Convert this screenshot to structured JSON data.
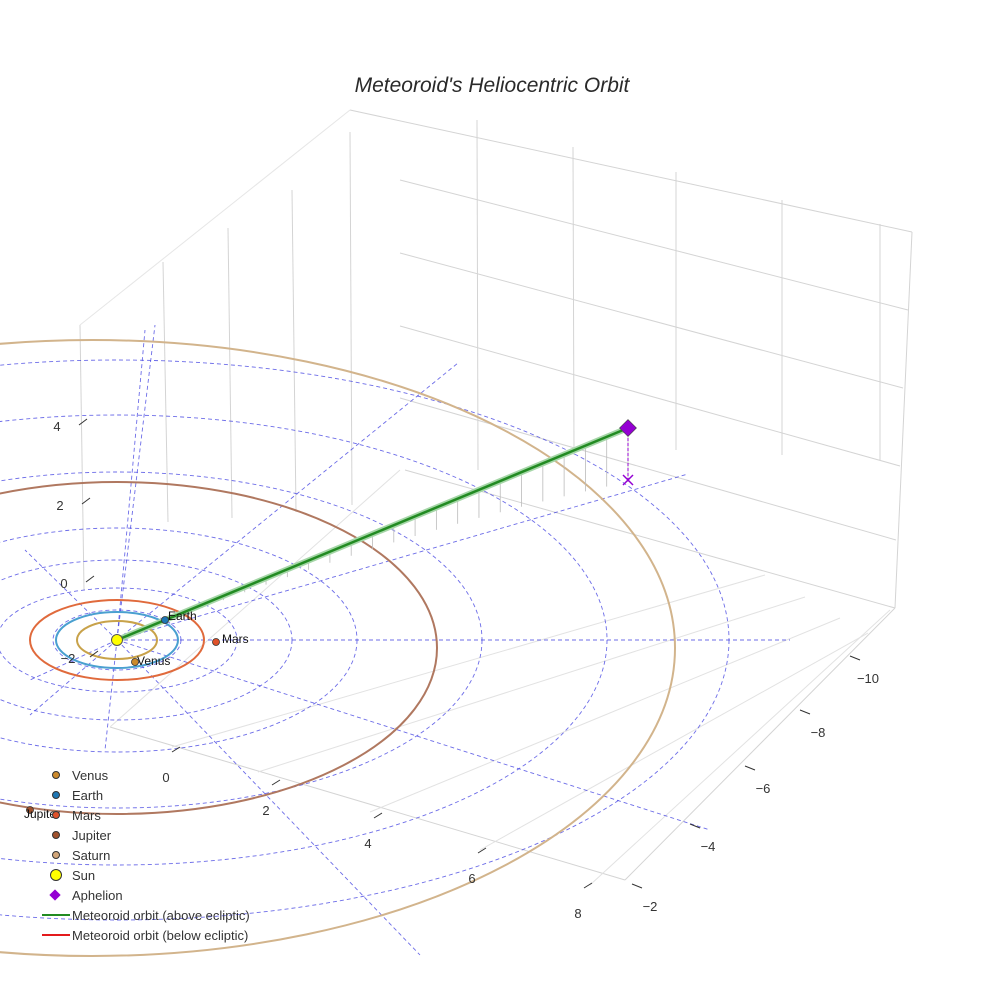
{
  "chart_data": {
    "type": "scatter",
    "title": "Meteoroid's Heliocentric Orbit",
    "x_ticks": [
      "0",
      "2",
      "4",
      "6",
      "8"
    ],
    "y_ticks": [
      "−10",
      "−8",
      "−6",
      "−4",
      "−2"
    ],
    "z_ticks": [
      "4",
      "2",
      "0",
      "−2"
    ],
    "planets": [
      {
        "name": "Venus",
        "label": "Venus",
        "color": "#cc8a2c"
      },
      {
        "name": "Earth",
        "label": "Earth",
        "color": "#1f77b4"
      },
      {
        "name": "Mars",
        "label": "Mars",
        "color": "#e0522a"
      },
      {
        "name": "Jupiter",
        "label": "Jupiter",
        "color": "#a0522d"
      },
      {
        "name": "Saturn",
        "color": "#d2a679"
      }
    ],
    "orbit_colors": {
      "venus": "#c8a24a",
      "earth": "#4aa0d0",
      "mars": "#e06a3c",
      "jupiter": "#b07860",
      "saturn": "#d2b48c"
    },
    "sun_color": "#ffff00",
    "aphelion_color": "#9400d3",
    "meteoroid_above_color": "#228b22",
    "meteoroid_below_color": "#e31a1c",
    "reference_grid_color": "#3b3be0",
    "legend": [
      {
        "label": "Venus",
        "symbol": "dot",
        "color": "#cc8a2c"
      },
      {
        "label": "Earth",
        "symbol": "dot",
        "color": "#1f77b4"
      },
      {
        "label": "Mars",
        "symbol": "dot",
        "color": "#e0522a"
      },
      {
        "label": "Jupiter",
        "symbol": "dot",
        "color": "#a0522d"
      },
      {
        "label": "Saturn",
        "symbol": "dot",
        "color": "#d2a679"
      },
      {
        "label": "Sun",
        "symbol": "bigdot",
        "color": "#ffff00"
      },
      {
        "label": "Aphelion",
        "symbol": "diamond",
        "color": "#9400d3"
      },
      {
        "label": "Meteoroid orbit (above ecliptic)",
        "symbol": "line",
        "color": "#228b22"
      },
      {
        "label": "Meteoroid orbit (below ecliptic)",
        "symbol": "line",
        "color": "#e31a1c"
      }
    ]
  }
}
